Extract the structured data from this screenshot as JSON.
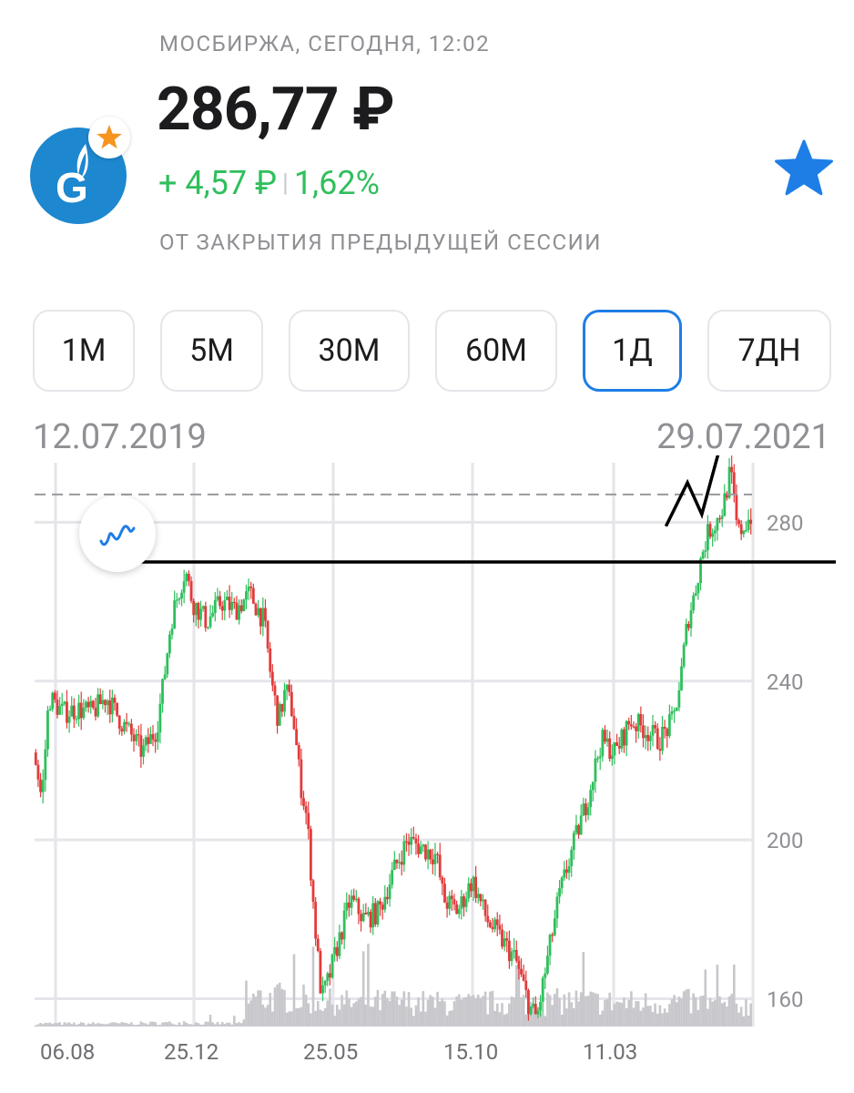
{
  "header": {
    "exchange_time": "МОСБИРЖА, СЕГОДНЯ, 12:02",
    "price": "286,77 ₽",
    "change_abs": "+ 4,57 ₽",
    "change_pct": "1,62%",
    "subtitle": "ОТ ЗАКРЫТИЯ ПРЕДЫДУЩЕЙ СЕССИИ",
    "logo_icon": "gazprom-logo-icon",
    "logo_badge_icon": "star-badge-icon",
    "favorite_icon": "star-icon"
  },
  "colors": {
    "accent": "#1e7ee6",
    "positive": "#2fbf5c",
    "negative": "#e23b3b",
    "logo_bg": "#1d87cf",
    "badge_star": "#f5941f"
  },
  "timeframes": [
    "1М",
    "5М",
    "30М",
    "60М",
    "1Д",
    "7ДН"
  ],
  "selected_timeframe": "1Д",
  "range": {
    "start": "12.07.2019",
    "end": "29.07.2021"
  },
  "chart_data": {
    "type": "line",
    "subtype": "candlestick",
    "y_ticks": [
      "280",
      "240",
      "200",
      "160"
    ],
    "x_ticks": [
      "06.08",
      "25.12",
      "25.05",
      "15.10",
      "11.03"
    ],
    "ylim": [
      153,
      295
    ],
    "last_price_line": 287,
    "support_line": 270,
    "x_index_range": [
      0,
      100
    ],
    "price_path": [
      [
        0,
        222
      ],
      [
        1,
        210
      ],
      [
        2,
        236
      ],
      [
        4,
        232
      ],
      [
        6,
        233
      ],
      [
        8,
        232
      ],
      [
        10,
        236
      ],
      [
        12,
        230
      ],
      [
        14,
        225
      ],
      [
        15,
        222
      ],
      [
        17,
        228
      ],
      [
        18,
        240
      ],
      [
        19,
        255
      ],
      [
        20,
        262
      ],
      [
        21,
        268
      ],
      [
        22,
        260
      ],
      [
        24,
        255
      ],
      [
        26,
        260
      ],
      [
        28,
        258
      ],
      [
        30,
        262
      ],
      [
        32,
        255
      ],
      [
        33,
        240
      ],
      [
        34,
        230
      ],
      [
        35,
        238
      ],
      [
        36,
        232
      ],
      [
        37,
        215
      ],
      [
        38,
        205
      ],
      [
        39,
        180
      ],
      [
        40,
        160
      ],
      [
        41,
        165
      ],
      [
        42,
        172
      ],
      [
        44,
        185
      ],
      [
        46,
        180
      ],
      [
        48,
        182
      ],
      [
        50,
        192
      ],
      [
        52,
        200
      ],
      [
        54,
        198
      ],
      [
        56,
        196
      ],
      [
        57,
        185
      ],
      [
        59,
        182
      ],
      [
        61,
        190
      ],
      [
        63,
        180
      ],
      [
        65,
        175
      ],
      [
        67,
        170
      ],
      [
        69,
        158
      ],
      [
        70,
        155
      ],
      [
        71,
        165
      ],
      [
        73,
        185
      ],
      [
        75,
        198
      ],
      [
        77,
        210
      ],
      [
        79,
        225
      ],
      [
        81,
        222
      ],
      [
        83,
        230
      ],
      [
        85,
        228
      ],
      [
        87,
        225
      ],
      [
        89,
        230
      ],
      [
        90,
        240
      ],
      [
        91,
        255
      ],
      [
        92,
        262
      ],
      [
        93,
        272
      ],
      [
        94,
        278
      ],
      [
        95,
        280
      ],
      [
        96,
        284
      ],
      [
        97,
        293
      ],
      [
        98,
        277
      ],
      [
        100,
        282
      ]
    ],
    "volume_profile": [
      [
        0,
        4
      ],
      [
        10,
        4
      ],
      [
        20,
        5
      ],
      [
        29,
        4
      ],
      [
        30,
        38
      ],
      [
        35,
        40
      ],
      [
        40,
        34
      ],
      [
        45,
        32
      ],
      [
        50,
        34
      ],
      [
        55,
        32
      ],
      [
        60,
        30
      ],
      [
        65,
        33
      ],
      [
        70,
        32
      ],
      [
        75,
        35
      ],
      [
        80,
        33
      ],
      [
        85,
        32
      ],
      [
        90,
        34
      ],
      [
        95,
        30
      ],
      [
        100,
        28
      ]
    ],
    "user_annotation": {
      "horizontal_line_price": 270,
      "zigzag": [
        [
          88,
          279
        ],
        [
          91,
          290
        ],
        [
          93,
          282
        ],
        [
          96,
          302
        ]
      ]
    }
  }
}
